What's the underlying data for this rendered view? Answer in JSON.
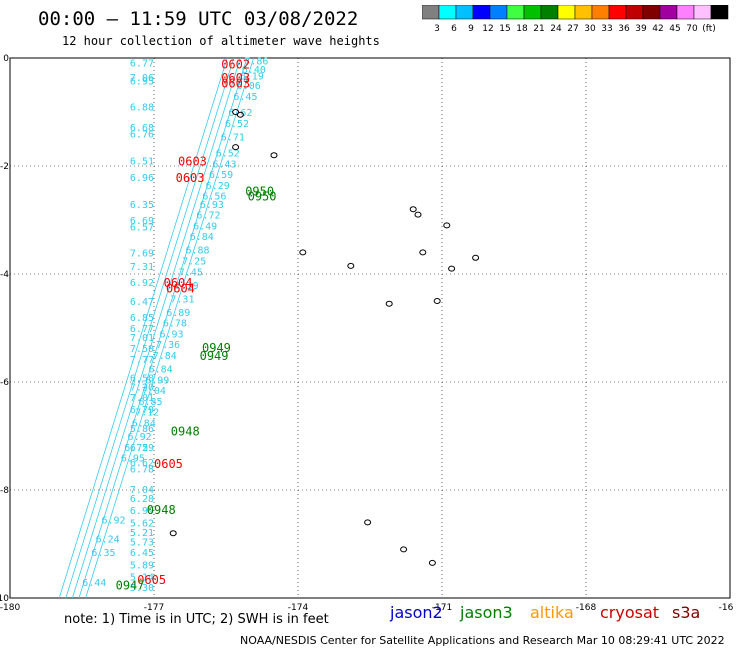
{
  "header": {
    "title": "00:00 — 11:59 UTC 03/08/2022",
    "subtitle": "12 hour collection of altimeter wave heights"
  },
  "color_scale": {
    "colors": [
      "#808080",
      "#00ffff",
      "#00c0ff",
      "#0000ff",
      "#0080ff",
      "#40ff40",
      "#00c000",
      "#008000",
      "#ffff00",
      "#ffc000",
      "#ff8000",
      "#ff0000",
      "#c00000",
      "#800000",
      "#a000a0",
      "#ff80ff",
      "#ffc0ff",
      "#000000"
    ],
    "labels": [
      "3",
      "6",
      "9",
      "12",
      "15",
      "18",
      "21",
      "24",
      "27",
      "30",
      "33",
      "36",
      "39",
      "42",
      "45",
      "70",
      "(ft)"
    ]
  },
  "map": {
    "lon_ticks": [
      "-180",
      "-177",
      "-174",
      "-171",
      "-168",
      "-16"
    ],
    "lat_ticks": [
      "0",
      "-2",
      "-4",
      "-6",
      "-8",
      "-10"
    ],
    "lon_range": [
      -180,
      -165
    ],
    "lat_range": [
      -10,
      0
    ],
    "track_color": "#33ccee",
    "left_values": [
      {
        "v": "6.77",
        "lat": -0.08
      },
      {
        "v": "7.06",
        "lat": -0.35
      },
      {
        "v": "6.95",
        "lat": -0.42
      },
      {
        "v": "6.88",
        "lat": -0.9
      },
      {
        "v": "6.68",
        "lat": -1.28
      },
      {
        "v": "6.76",
        "lat": -1.4
      },
      {
        "v": "6.51",
        "lat": -1.9
      },
      {
        "v": "6.96",
        "lat": -2.2
      },
      {
        "v": "6.35",
        "lat": -2.7
      },
      {
        "v": "6.69",
        "lat": -3.0
      },
      {
        "v": "6.57",
        "lat": -3.12
      },
      {
        "v": "7.69",
        "lat": -3.6
      },
      {
        "v": "7.31",
        "lat": -3.85
      },
      {
        "v": "6.92",
        "lat": -4.15
      },
      {
        "v": "6.47",
        "lat": -4.5
      },
      {
        "v": "6.85",
        "lat": -4.8
      },
      {
        "v": "6.77",
        "lat": -5.0
      },
      {
        "v": "7.01",
        "lat": -5.17
      },
      {
        "v": "7.50",
        "lat": -5.37
      },
      {
        "v": "7.77",
        "lat": -5.57
      },
      {
        "v": "6.58",
        "lat": -5.92
      },
      {
        "v": "7.20",
        "lat": -6.08
      },
      {
        "v": "7.01",
        "lat": -6.28
      },
      {
        "v": "6.79",
        "lat": -6.5
      },
      {
        "v": "5.86",
        "lat": -6.85
      },
      {
        "v": "6.29",
        "lat": -7.2
      },
      {
        "v": "6.62",
        "lat": -7.48
      },
      {
        "v": "6.78",
        "lat": -7.6
      },
      {
        "v": "7.04",
        "lat": -7.98
      },
      {
        "v": "6.28",
        "lat": -8.15
      },
      {
        "v": "6.99",
        "lat": -8.37
      },
      {
        "v": "5.62",
        "lat": -8.6
      },
      {
        "v": "5.21",
        "lat": -8.78
      },
      {
        "v": "5.73",
        "lat": -8.95
      },
      {
        "v": "6.45",
        "lat": -9.15
      },
      {
        "v": "5.89",
        "lat": -9.38
      },
      {
        "v": "5.14",
        "lat": -9.6
      },
      {
        "v": "5.30",
        "lat": -9.8
      }
    ],
    "right_values": [
      {
        "v": "7.86",
        "lat": -0.05
      },
      {
        "v": "6.40",
        "lat": -0.2
      },
      {
        "v": "6.19",
        "lat": -0.32
      },
      {
        "v": "6.06",
        "lat": -0.5
      },
      {
        "v": "6.45",
        "lat": -0.7
      },
      {
        "v": "6.62",
        "lat": -1.0
      },
      {
        "v": "6.52",
        "lat": -1.2
      },
      {
        "v": "6.71",
        "lat": -1.45
      },
      {
        "v": "6.52",
        "lat": -1.75
      },
      {
        "v": "6.43",
        "lat": -1.95
      },
      {
        "v": "6.59",
        "lat": -2.15
      },
      {
        "v": "6.29",
        "lat": -2.35
      },
      {
        "v": "6.56",
        "lat": -2.55
      },
      {
        "v": "6.93",
        "lat": -2.7
      },
      {
        "v": "6.72",
        "lat": -2.9
      },
      {
        "v": "6.49",
        "lat": -3.1
      },
      {
        "v": "6.84",
        "lat": -3.3
      },
      {
        "v": "6.88",
        "lat": -3.55
      },
      {
        "v": "7.25",
        "lat": -3.75
      },
      {
        "v": "7.45",
        "lat": -3.95
      },
      {
        "v": "7.39",
        "lat": -4.2
      },
      {
        "v": "7.31",
        "lat": -4.45
      },
      {
        "v": "6.89",
        "lat": -4.7
      },
      {
        "v": "6.78",
        "lat": -4.9
      },
      {
        "v": "6.93",
        "lat": -5.1
      },
      {
        "v": "7.36",
        "lat": -5.3
      },
      {
        "v": "7.84",
        "lat": -5.5
      },
      {
        "v": "6.84",
        "lat": -5.75
      },
      {
        "v": "6.99",
        "lat": -5.95
      },
      {
        "v": "7.04",
        "lat": -6.15
      },
      {
        "v": "6.85",
        "lat": -6.35
      },
      {
        "v": "7.12",
        "lat": -6.55
      },
      {
        "v": "6.84",
        "lat": -6.75
      },
      {
        "v": "6.92",
        "lat": -7.0
      },
      {
        "v": "6.75",
        "lat": -7.2
      },
      {
        "v": "6.95",
        "lat": -7.4
      },
      {
        "v": "6.92",
        "lat": -8.55
      },
      {
        "v": "6.24",
        "lat": -8.9
      },
      {
        "v": "6.35",
        "lat": -9.15
      },
      {
        "v": "6.44",
        "lat": -9.7
      }
    ],
    "time_labels": [
      {
        "t": "0602",
        "color": "#ff0000",
        "lon": -175.6,
        "lat": -0.1
      },
      {
        "t": "0603",
        "color": "#ff0000",
        "lon": -175.6,
        "lat": -0.35
      },
      {
        "t": "0603",
        "color": "#ff0000",
        "lon": -175.6,
        "lat": -0.45
      },
      {
        "t": "0603",
        "color": "#ff0000",
        "lon": -176.5,
        "lat": -1.9
      },
      {
        "t": "0603",
        "color": "#ff0000",
        "lon": -176.55,
        "lat": -2.2
      },
      {
        "t": "0950",
        "color": "#008000",
        "lon": -175.1,
        "lat": -2.45
      },
      {
        "t": "0950",
        "color": "#008000",
        "lon": -175.05,
        "lat": -2.55
      },
      {
        "t": "0604",
        "color": "#ff0000",
        "lon": -176.8,
        "lat": -4.15
      },
      {
        "t": "0604",
        "color": "#ff0000",
        "lon": -176.75,
        "lat": -4.25
      },
      {
        "t": "0949",
        "color": "#008000",
        "lon": -176.0,
        "lat": -5.35
      },
      {
        "t": "0949",
        "color": "#008000",
        "lon": -176.05,
        "lat": -5.5
      },
      {
        "t": "0948",
        "color": "#008000",
        "lon": -176.65,
        "lat": -6.9
      },
      {
        "t": "0605",
        "color": "#ff0000",
        "lon": -177.0,
        "lat": -7.5
      },
      {
        "t": "0948",
        "color": "#008000",
        "lon": -177.15,
        "lat": -8.35
      },
      {
        "t": "0605",
        "color": "#ff0000",
        "lon": -177.35,
        "lat": -9.65
      },
      {
        "t": "0947",
        "color": "#008000",
        "lon": -177.8,
        "lat": -9.75
      }
    ],
    "islands": [
      {
        "lon": -175.3,
        "lat": -1.0
      },
      {
        "lon": -175.2,
        "lat": -1.05
      },
      {
        "lon": -175.3,
        "lat": -1.65
      },
      {
        "lon": -174.5,
        "lat": -1.8
      },
      {
        "lon": -171.6,
        "lat": -2.8
      },
      {
        "lon": -171.5,
        "lat": -2.9
      },
      {
        "lon": -170.9,
        "lat": -3.1
      },
      {
        "lon": -171.4,
        "lat": -3.6
      },
      {
        "lon": -170.3,
        "lat": -3.7
      },
      {
        "lon": -170.8,
        "lat": -3.9
      },
      {
        "lon": -172.9,
        "lat": -3.85
      },
      {
        "lon": -173.9,
        "lat": -3.6
      },
      {
        "lon": -171.1,
        "lat": -4.5
      },
      {
        "lon": -172.1,
        "lat": -4.55
      },
      {
        "lon": -172.55,
        "lat": -8.6
      },
      {
        "lon": -176.6,
        "lat": -8.8
      },
      {
        "lon": -171.8,
        "lat": -9.1
      },
      {
        "lon": -171.2,
        "lat": -9.35
      }
    ]
  },
  "footer": {
    "note": "note: 1) Time is in UTC; 2) SWH is in feet",
    "satellites": [
      {
        "name": "jason2",
        "color": "#0000cc"
      },
      {
        "name": "jason3",
        "color": "#008000"
      },
      {
        "name": "altika",
        "color": "#ff9900"
      },
      {
        "name": "cryosat",
        "color": "#cc0000"
      },
      {
        "name": "s3a",
        "color": "#800000"
      }
    ],
    "credit": "NOAA/NESDIS Center for Satellite Applications and Research    Mar 10 08:29:41 UTC 2022"
  }
}
